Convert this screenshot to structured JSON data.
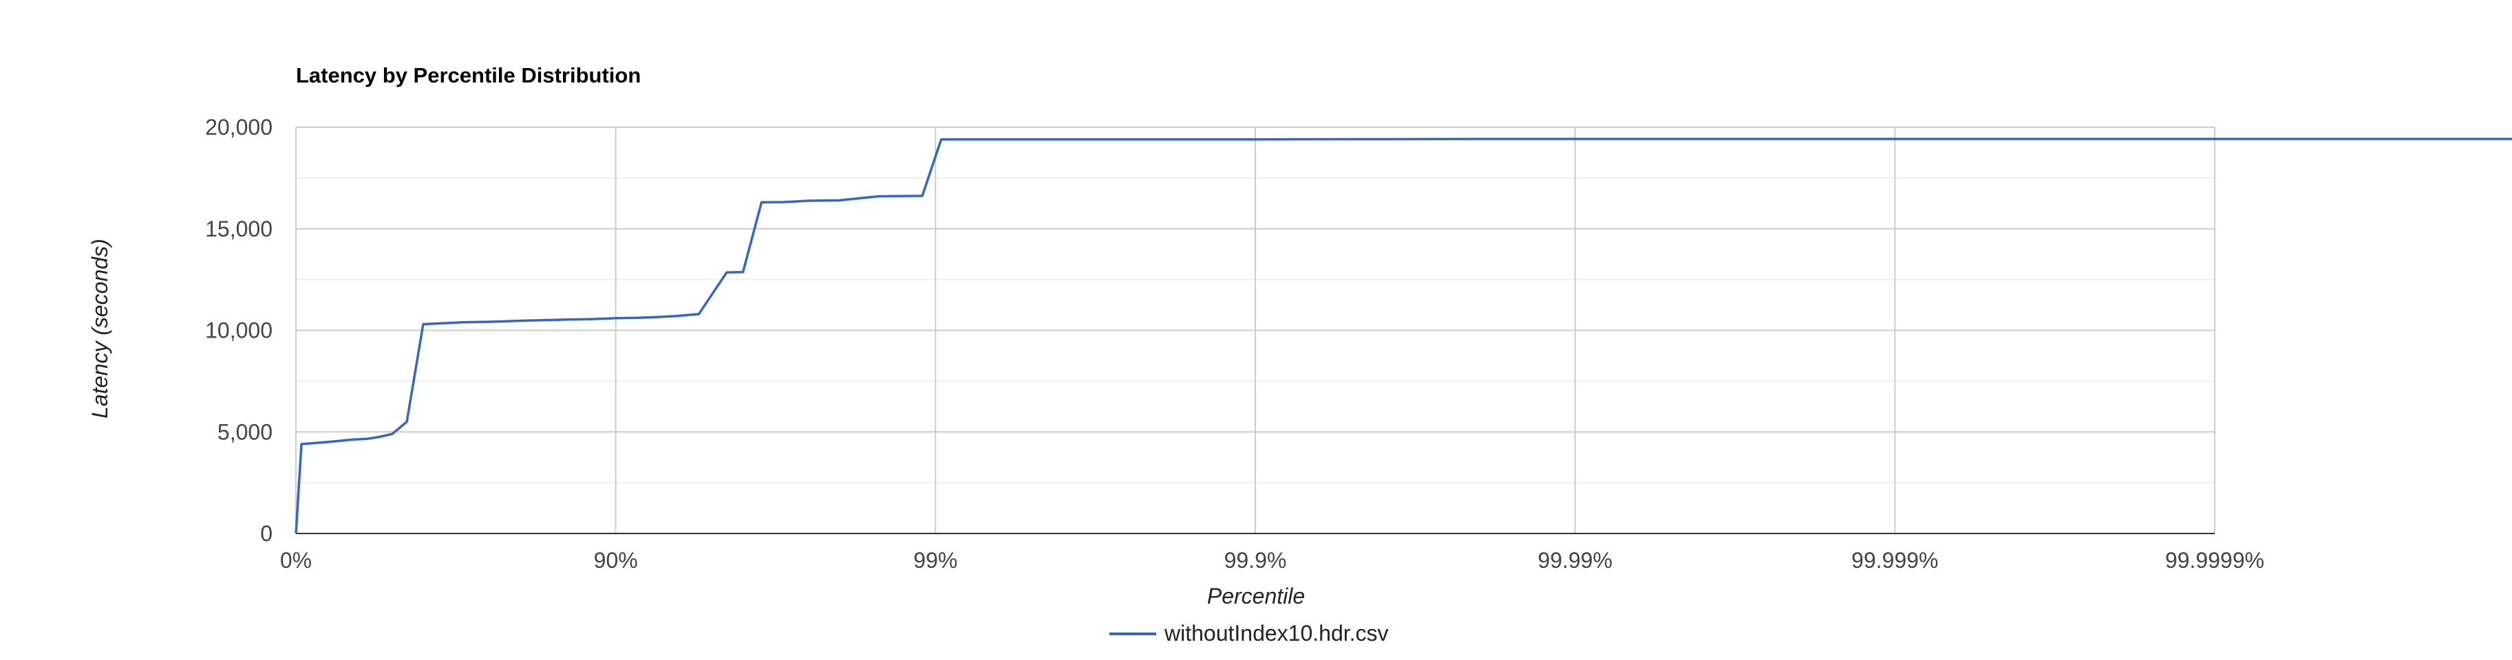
{
  "chart_data": {
    "type": "line",
    "title": "Latency by Percentile Distribution",
    "xlabel": "Percentile",
    "ylabel": "Latency (seconds)",
    "x_scale": "log of 1/(1 - percentile)",
    "x_tick_labels": [
      "0%",
      "90%",
      "99%",
      "99.9%",
      "99.99%",
      "99.999%",
      "99.9999%"
    ],
    "ylim": [
      0,
      20000
    ],
    "y_tick_labels": [
      "0",
      "5,000",
      "10,000",
      "15,000",
      "20,000"
    ],
    "grid": true,
    "legend_position": "bottom",
    "series": [
      {
        "name": "withoutIndex10.hdr.csv",
        "color": "#3366cc",
        "x_percentile": [
          0,
          3.9,
          12,
          20,
          27,
          33,
          40,
          45,
          50,
          55,
          60,
          65,
          70,
          75,
          80,
          83,
          86,
          88,
          90,
          91.5,
          92.5,
          93.5,
          94.5,
          95.5,
          96,
          96.5,
          97,
          97.5,
          98,
          98.5,
          98.9,
          99.04,
          99.3,
          99.7,
          99.9,
          99.98,
          99.99,
          99.999,
          99.9999,
          99.99999,
          99.999997
        ],
        "y": [
          0,
          4400,
          4450,
          4500,
          4560,
          4620,
          4660,
          4750,
          4900,
          5500,
          10300,
          10350,
          10400,
          10420,
          10470,
          10500,
          10530,
          10550,
          10600,
          10620,
          10650,
          10700,
          10800,
          12850,
          12870,
          16300,
          16310,
          16380,
          16400,
          16600,
          16620,
          19400,
          19400,
          19400,
          19400,
          19420,
          19420,
          19420,
          19420,
          19420,
          19420
        ]
      }
    ]
  }
}
